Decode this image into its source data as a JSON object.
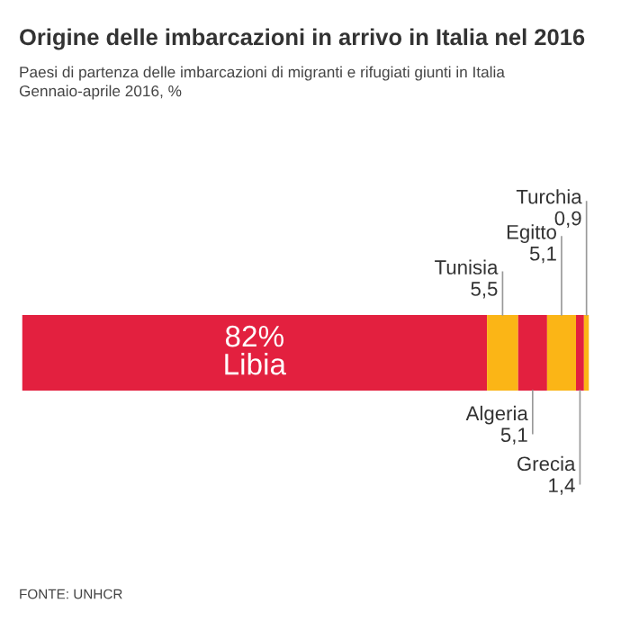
{
  "chart_data": {
    "type": "bar",
    "orientation": "horizontal",
    "stacked": true,
    "title": "Origine delle imbarcazioni in arrivo in Italia nel 2016",
    "subtitle": "Paesi di partenza delle imbarcazioni di migranti e rifugiati giunti in Italia\nGennaio-aprile 2016, %",
    "categories": [
      null
    ],
    "series": [
      {
        "name": "Libia",
        "color": "#e3203f",
        "values": [
          82
        ],
        "value_labels": [
          "82%"
        ]
      },
      {
        "name": "Tunisia",
        "color": "#fbb516",
        "values": [
          5.5
        ],
        "value_labels": [
          "5,5"
        ]
      },
      {
        "name": "Algeria",
        "color": "#e3203f",
        "values": [
          5.1
        ],
        "value_labels": [
          "5,1"
        ]
      },
      {
        "name": "Egitto",
        "color": "#fbb516",
        "values": [
          5.1
        ],
        "value_labels": [
          "5,1"
        ]
      },
      {
        "name": "Grecia",
        "color": "#e3203f",
        "values": [
          1.4
        ],
        "value_labels": [
          "1,4"
        ]
      },
      {
        "name": "Turchia",
        "color": "#fbb516",
        "values": [
          0.9
        ],
        "value_labels": [
          "0,9"
        ]
      }
    ],
    "annotations": [
      "FONTE: UNHCR"
    ]
  }
}
